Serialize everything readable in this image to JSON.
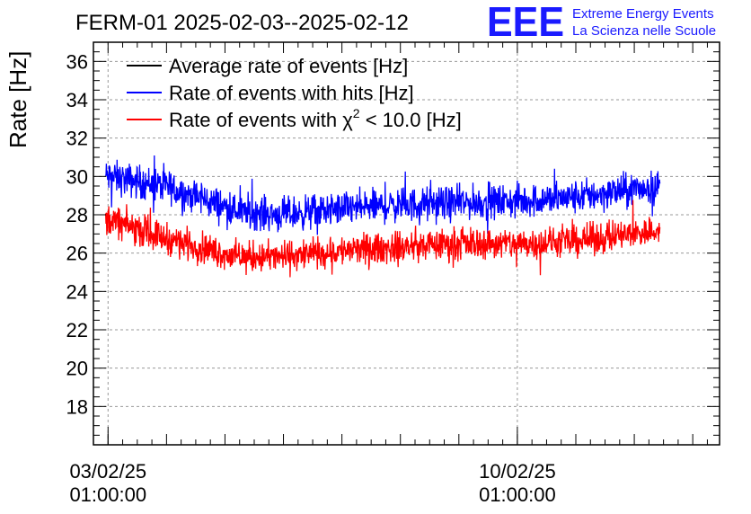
{
  "title": "FERM-01 2025-02-03--2025-02-12",
  "logo": {
    "text": "EEE",
    "line1": "Extreme Energy Events",
    "line2": "La Scienza nelle Scuole",
    "color": "#1a1aff"
  },
  "chart_data": {
    "type": "line",
    "title": "FERM-01 2025-02-03--2025-02-12",
    "ylabel": "Rate [Hz]",
    "xlabel": "",
    "ylim": [
      16,
      37
    ],
    "yticks": [
      18,
      20,
      22,
      24,
      26,
      28,
      30,
      32,
      34,
      36
    ],
    "x_range_days": [
      "2025-02-02T19:00:00",
      "2025-02-13T12:00:00"
    ],
    "xticks": [
      {
        "date": "2025-02-03T01:00:00",
        "label1": "03/02/25",
        "label2": "01:00:00"
      },
      {
        "date": "2025-02-10T01:00:00",
        "label1": "10/02/25",
        "label2": "01:00:00"
      }
    ],
    "grid": true,
    "legend_position": "top-left",
    "series": [
      {
        "name": "Average rate of events [Hz]",
        "color": "#000000",
        "values": []
      },
      {
        "name": "Rate of events with hits [Hz]",
        "color": "#0000ff",
        "approx_profile": [
          {
            "date": "2025-02-03T00:00:00",
            "value": 30.0
          },
          {
            "date": "2025-02-04T00:00:00",
            "value": 29.5
          },
          {
            "date": "2025-02-05T06:00:00",
            "value": 28.2
          },
          {
            "date": "2025-02-06T00:00:00",
            "value": 28.0
          },
          {
            "date": "2025-02-07T00:00:00",
            "value": 28.3
          },
          {
            "date": "2025-02-08T00:00:00",
            "value": 28.5
          },
          {
            "date": "2025-02-09T00:00:00",
            "value": 28.6
          },
          {
            "date": "2025-02-10T00:00:00",
            "value": 28.7
          },
          {
            "date": "2025-02-11T00:00:00",
            "value": 28.9
          },
          {
            "date": "2025-02-12T12:00:00",
            "value": 29.5
          }
        ],
        "noise_amplitude": 1.3
      },
      {
        "name": "Rate of events with χ² < 10.0 [Hz]",
        "color": "#ff0000",
        "approx_profile": [
          {
            "date": "2025-02-03T00:00:00",
            "value": 27.8
          },
          {
            "date": "2025-02-04T00:00:00",
            "value": 26.8
          },
          {
            "date": "2025-02-05T06:00:00",
            "value": 25.8
          },
          {
            "date": "2025-02-06T00:00:00",
            "value": 25.8
          },
          {
            "date": "2025-02-07T00:00:00",
            "value": 26.1
          },
          {
            "date": "2025-02-08T00:00:00",
            "value": 26.3
          },
          {
            "date": "2025-02-09T00:00:00",
            "value": 26.5
          },
          {
            "date": "2025-02-10T00:00:00",
            "value": 26.5
          },
          {
            "date": "2025-02-11T00:00:00",
            "value": 26.6
          },
          {
            "date": "2025-02-12T12:00:00",
            "value": 27.2
          }
        ],
        "noise_amplitude": 1.2
      }
    ],
    "legend_labels": [
      {
        "text": "Average rate of events [Hz]"
      },
      {
        "text": "Rate of events with hits [Hz]"
      },
      {
        "text_pre": "Rate of events with ",
        "chi": "χ",
        "sup": "2",
        "text_post": " < 10.0 [Hz]"
      }
    ]
  }
}
